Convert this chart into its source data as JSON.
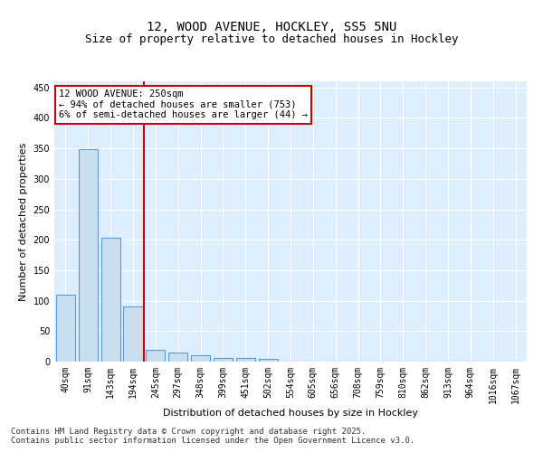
{
  "title": "12, WOOD AVENUE, HOCKLEY, SS5 5NU",
  "subtitle": "Size of property relative to detached houses in Hockley",
  "xlabel": "Distribution of detached houses by size in Hockley",
  "ylabel": "Number of detached properties",
  "categories": [
    "40sqm",
    "91sqm",
    "143sqm",
    "194sqm",
    "245sqm",
    "297sqm",
    "348sqm",
    "399sqm",
    "451sqm",
    "502sqm",
    "554sqm",
    "605sqm",
    "656sqm",
    "708sqm",
    "759sqm",
    "810sqm",
    "862sqm",
    "913sqm",
    "964sqm",
    "1016sqm",
    "1067sqm"
  ],
  "values": [
    110,
    348,
    204,
    90,
    20,
    15,
    11,
    6,
    6,
    4,
    0,
    0,
    0,
    0,
    0,
    0,
    0,
    0,
    0,
    0,
    0
  ],
  "bar_color": "#c9dff0",
  "bar_edge_color": "#5b9bd5",
  "vline_index": 4,
  "vline_color": "#cc0000",
  "annotation_text": "12 WOOD AVENUE: 250sqm\n← 94% of detached houses are smaller (753)\n6% of semi-detached houses are larger (44) →",
  "annotation_box_color": "#ffffff",
  "annotation_box_edge": "#cc0000",
  "ylim": [
    0,
    460
  ],
  "yticks": [
    0,
    50,
    100,
    150,
    200,
    250,
    300,
    350,
    400,
    450
  ],
  "background_color": "#ddeeff",
  "footer_text": "Contains HM Land Registry data © Crown copyright and database right 2025.\nContains public sector information licensed under the Open Government Licence v3.0.",
  "title_fontsize": 10,
  "subtitle_fontsize": 9,
  "axis_label_fontsize": 8,
  "tick_fontsize": 7,
  "annotation_fontsize": 7.5,
  "footer_fontsize": 6.5
}
